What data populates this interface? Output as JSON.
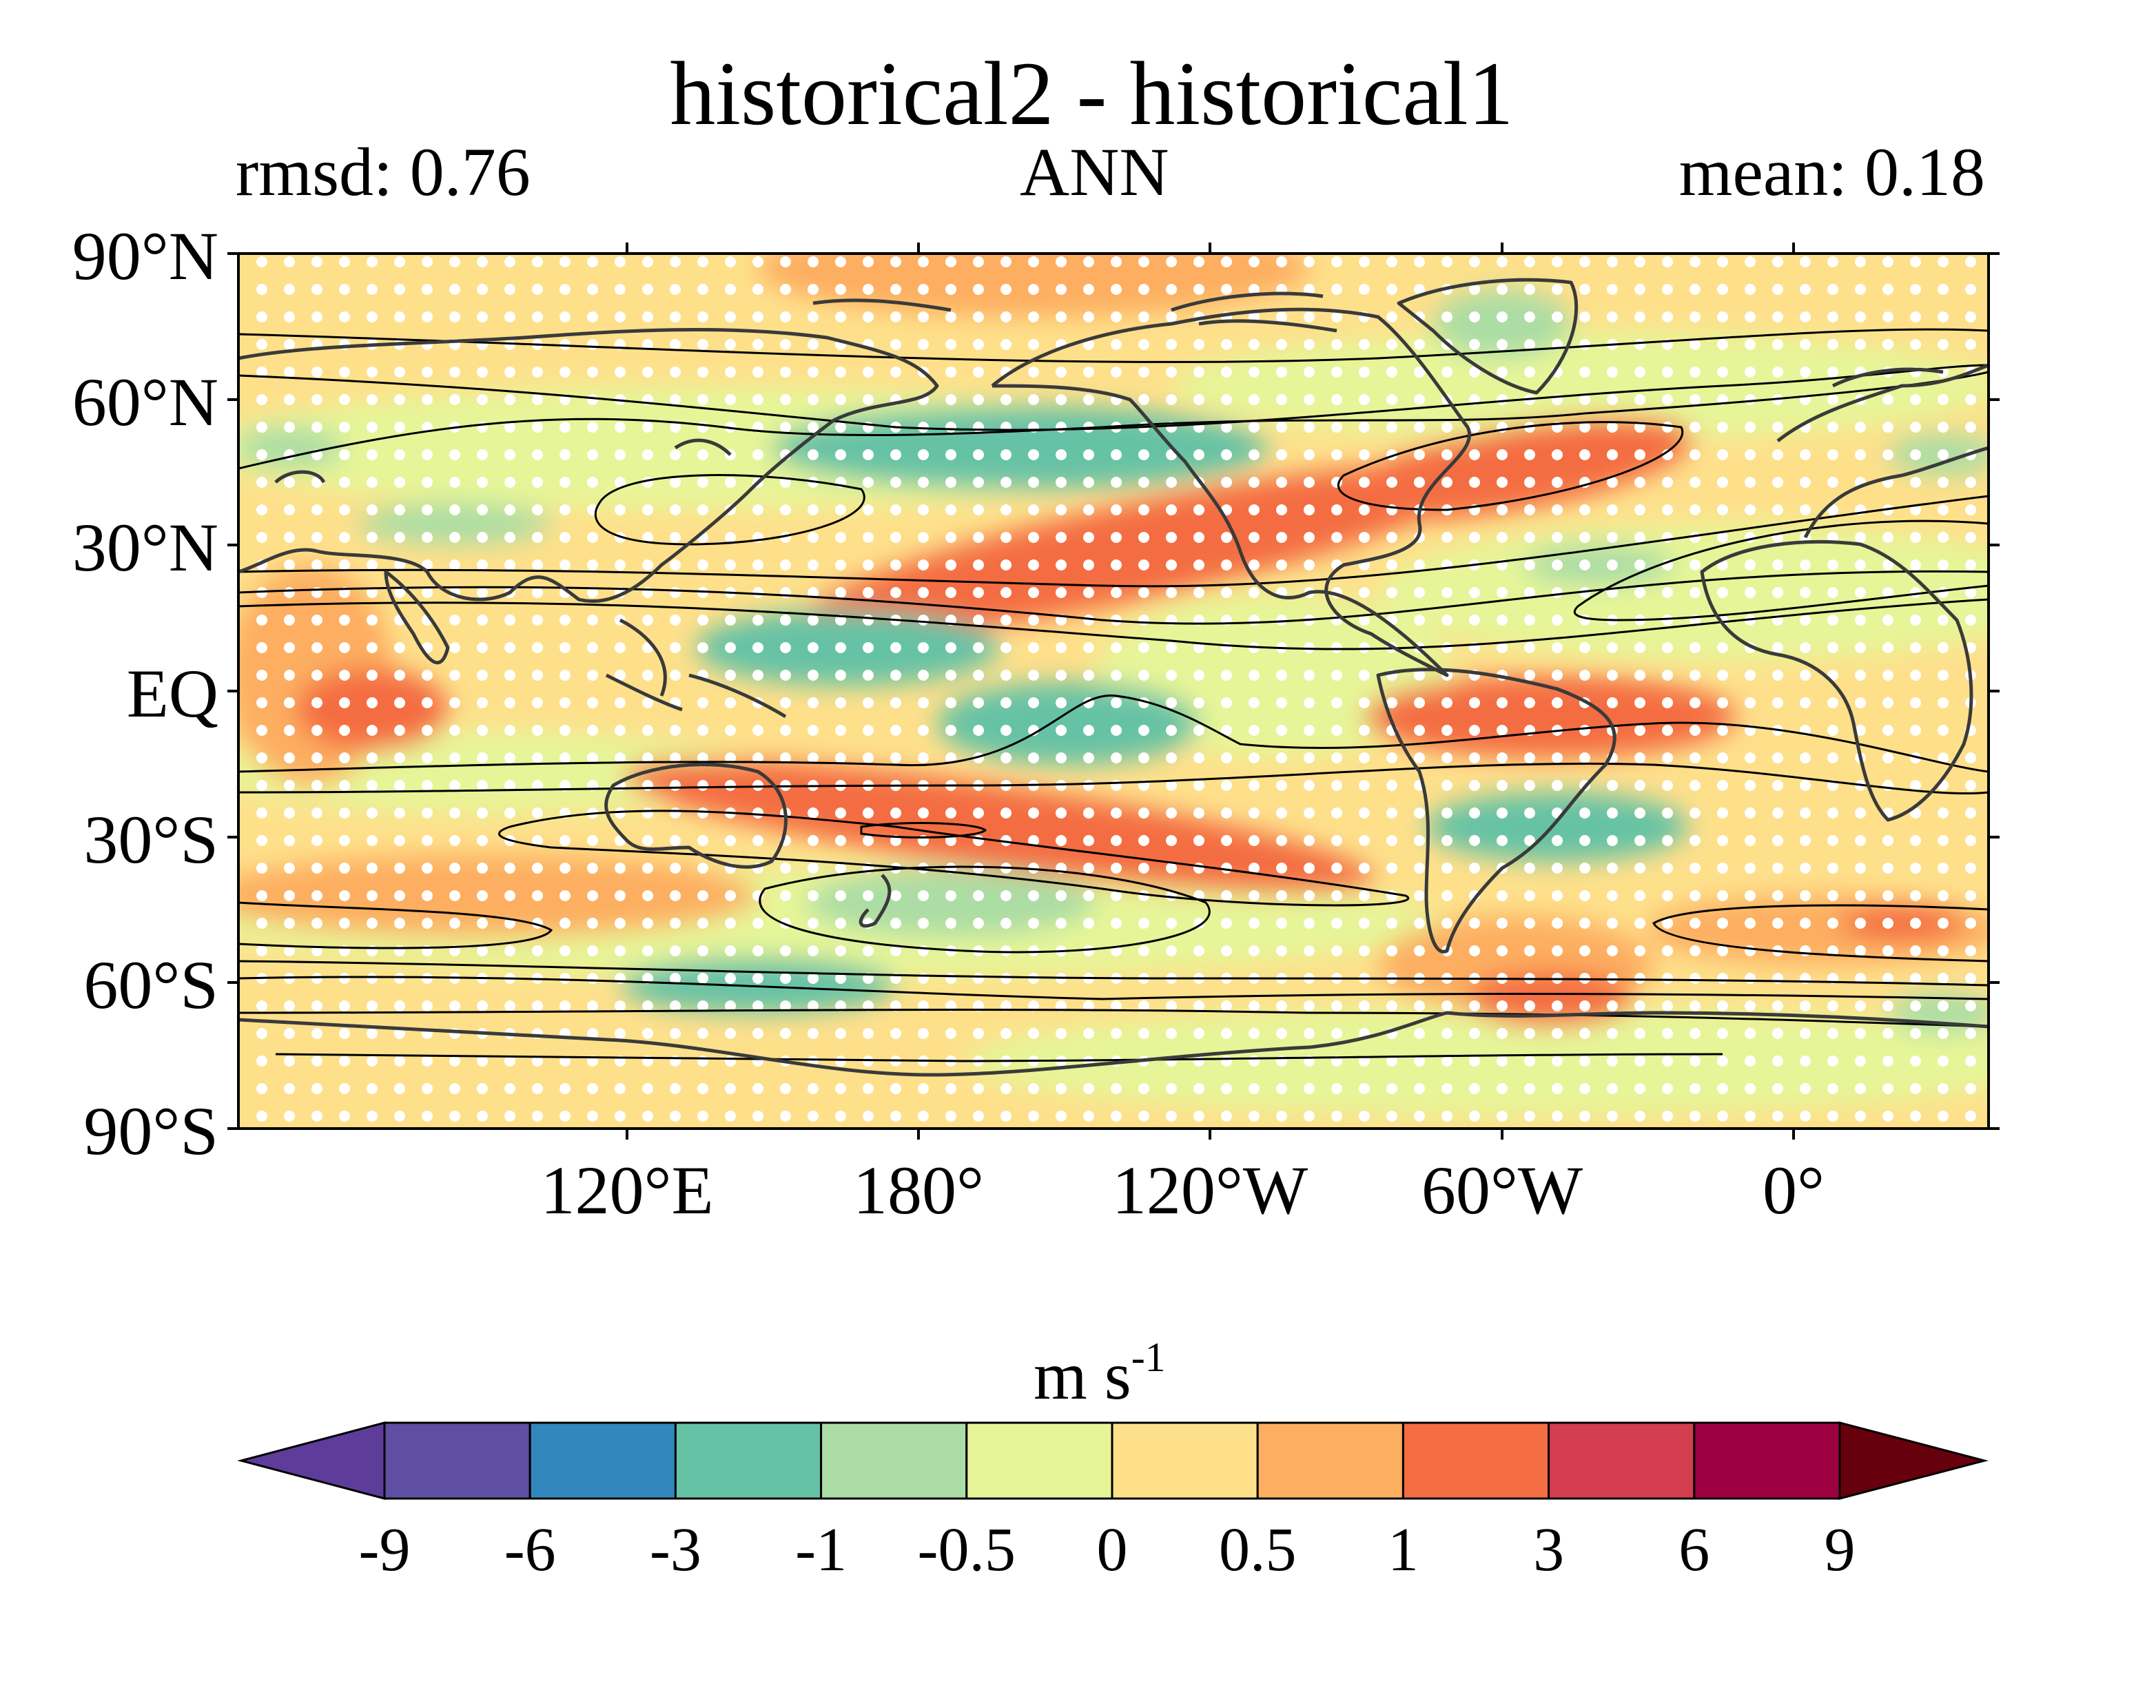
{
  "title": "historical2 - historical1",
  "subtitle_left": "rmsd: 0.76",
  "subtitle_center": "ANN",
  "subtitle_right": "mean: 0.18",
  "lat_labels": [
    "90°N",
    "60°N",
    "30°N",
    "EQ",
    "30°S",
    "60°S",
    "90°S"
  ],
  "lon_labels": [
    "120°E",
    "180°",
    "120°W",
    "60°W",
    "0°"
  ],
  "colorbar": {
    "label_main": "m s",
    "label_sup": "-1",
    "ticks": [
      "-9",
      "-6",
      "-3",
      "-1",
      "-0.5",
      "0",
      "0.5",
      "1",
      "3",
      "6",
      "9"
    ],
    "colors": [
      "#5e3c99",
      "#5e4fa2",
      "#3288bd",
      "#66c2a5",
      "#abdda4",
      "#e6f598",
      "#fee08b",
      "#fdae61",
      "#f46d43",
      "#d53e4f",
      "#9e0142",
      "#67000d"
    ]
  },
  "field_colors": {
    "neg3": "#66c2a5",
    "neg1": "#abdda4",
    "zero_neg": "#e6f598",
    "zero_pos": "#fee08b",
    "pos1": "#fdae61",
    "pos3": "#f46d43",
    "pos6": "#d53e4f"
  }
}
